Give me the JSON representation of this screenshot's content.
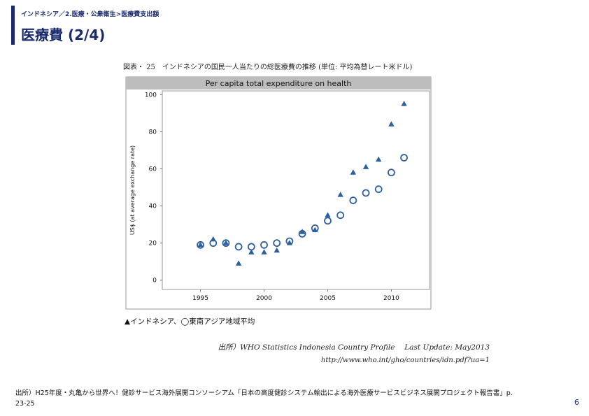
{
  "header": {
    "breadcrumb": "インドネシア／2.医療・公衆衛生>医療費支出額",
    "title": "医療費 (2/4)",
    "accent_color": "#1a2a6c"
  },
  "figure": {
    "caption": "図表・ 25　インドネシアの国民一人当たりの総医療費の推移 (単位: 平均為替レート米ドル)",
    "legend_note": "▲インドネシア、◯東南アジア地域平均",
    "source_line": "出所）WHO Statistics Indonesia Country Profile　 Last Update: May2013",
    "source_url": "http://www.who.int/gho/countries/idn.pdf?ua=1"
  },
  "footer": {
    "source": "出所）H25年度・丸亀から世界へ！健診サービス海外展開コンソーシアム「日本の高度健診システム輸出による海外医療サービスビジネス展開プロジェクト報告書」p. 23-25",
    "page_number": "6"
  },
  "chart_data": {
    "type": "scatter",
    "title": "Per capita total expenditure on health",
    "ylabel": "US$ (at average exchange rate)",
    "xlabel": "",
    "xlim": [
      1992,
      2013
    ],
    "ylim": [
      -5,
      102
    ],
    "x_ticks": [
      1995,
      2000,
      2005,
      2010
    ],
    "y_ticks": [
      0,
      20,
      40,
      60,
      80,
      100
    ],
    "grid": false,
    "series": [
      {
        "name": "インドネシア",
        "marker": "triangle",
        "color": "#2e5f9e",
        "x": [
          1995,
          1996,
          1997,
          1998,
          1999,
          2000,
          2001,
          2002,
          2003,
          2004,
          2005,
          2006,
          2007,
          2008,
          2009,
          2010,
          2011
        ],
        "y": [
          19,
          22,
          20,
          9,
          15,
          15,
          16,
          20,
          26,
          27,
          35,
          46,
          58,
          61,
          65,
          84,
          95
        ]
      },
      {
        "name": "東南アジア地域平均",
        "marker": "circle",
        "color": "#2e5f9e",
        "x": [
          1995,
          1996,
          1997,
          1998,
          1999,
          2000,
          2001,
          2002,
          2003,
          2004,
          2005,
          2006,
          2007,
          2008,
          2009,
          2010,
          2011
        ],
        "y": [
          19,
          20,
          20,
          18,
          18,
          19,
          20,
          21,
          25,
          28,
          32,
          35,
          43,
          47,
          49,
          58,
          66
        ]
      }
    ]
  }
}
